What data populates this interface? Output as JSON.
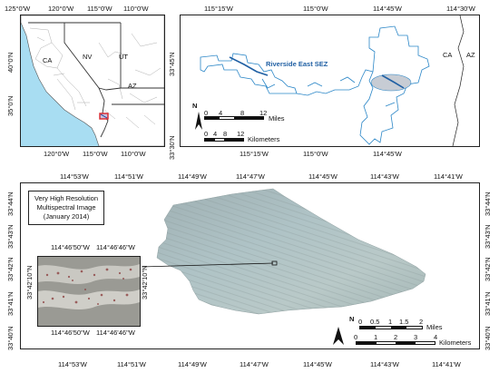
{
  "inset_map": {
    "top_lon_labels": [
      "125°0'W",
      "120°0'W",
      "115°0'W",
      "110°0'W"
    ],
    "bottom_lon_labels": [
      "120°0'W",
      "115°0'W",
      "110°0'W"
    ],
    "left_lat_labels": [
      "40°0'N",
      "35°0'N"
    ],
    "states": [
      "CA",
      "NV",
      "UT",
      "AZ"
    ]
  },
  "sez_map": {
    "top_lon_labels": [
      "115°15'W",
      "115°0'W",
      "114°45'W",
      "114°30'W"
    ],
    "bottom_lon_labels": [
      "115°15'W",
      "115°0'W",
      "114°45'W"
    ],
    "left_lat_labels": [
      "33°45'N",
      "33°30'N"
    ],
    "sez_label": "Riverside East SEZ",
    "state_labels": [
      "CA",
      "AZ"
    ],
    "north_arrow": "N",
    "scale_miles": {
      "ticks": [
        "0",
        "4",
        "8",
        "12"
      ],
      "unit": "Miles"
    },
    "scale_km": {
      "ticks": [
        "0",
        "4",
        "8",
        "12"
      ],
      "unit": "Kilometers"
    }
  },
  "main_map": {
    "top_lon_labels": [
      "114°53'W",
      "114°51'W",
      "114°49'W",
      "114°47'W",
      "114°45'W",
      "114°43'W",
      "114°41'W"
    ],
    "bottom_lon_labels": [
      "114°53'W",
      "114°51'W",
      "114°49'W",
      "114°47'W",
      "114°45'W",
      "114°43'W",
      "114°41'W"
    ],
    "left_lat_labels": [
      "33°44'N",
      "33°43'N",
      "33°42'N",
      "33°41'N",
      "33°40'N"
    ],
    "right_lat_labels": [
      "33°44'N",
      "33°43'N",
      "33°42'N",
      "33°41'N",
      "33°40'N"
    ],
    "title_lines": [
      "Very High Resolution",
      "Multispectral Image",
      "(January 2014)"
    ],
    "north_arrow": "N",
    "scale_miles": {
      "ticks": [
        "0",
        "0.5",
        "1",
        "1.5",
        "2"
      ],
      "unit": "Miles"
    },
    "scale_km": {
      "ticks": [
        "0",
        "1",
        "2",
        "3",
        "4"
      ],
      "unit": "Kilometers"
    }
  },
  "zoom_inset": {
    "top_lon_labels": [
      "114°46'50\"W",
      "114°46'46\"W"
    ],
    "bottom_lon_labels": [
      "114°46'50\"W",
      "114°46'46\"W"
    ],
    "left_lat_labels": [
      "33°42'10\"N"
    ],
    "right_lat_labels": [
      "33°42'10\"N"
    ]
  },
  "colors": {
    "ocean": "#a8ddf2",
    "land": "#ffffff",
    "sez_outline": "#2a86c7",
    "sez_fill": "#c7ccd4",
    "highlight_box": "#d8232a",
    "imagery": "#a7bcc0"
  }
}
